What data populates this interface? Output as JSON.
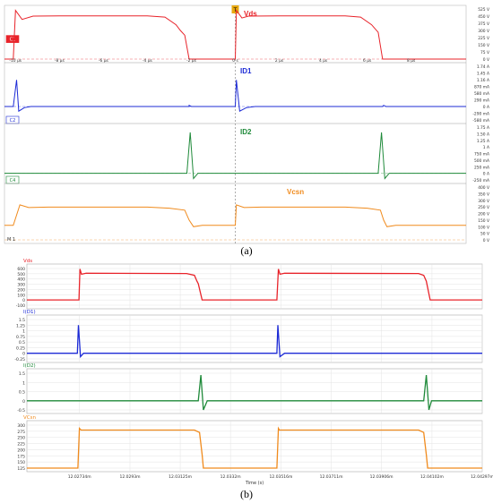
{
  "captions": {
    "a": "(a)",
    "b": "(b)"
  },
  "scope": {
    "x_ticks": [
      "-10 μs",
      "-8 μs",
      "-6 μs",
      "-4 μs",
      "-2 μs",
      "0 s",
      "2 μs",
      "4 μs",
      "6 μs",
      "8 μs"
    ],
    "trigger_marker": "T",
    "marker_label": "M 1",
    "channels": [
      {
        "key": "vds",
        "badge": "C1",
        "title": "Vds",
        "color": "#e8232a",
        "scale": [
          "525 V",
          "450 V",
          "375 V",
          "300 V",
          "225 V",
          "150 V",
          "75 V",
          "0 V"
        ]
      },
      {
        "key": "id1",
        "badge": "C2",
        "title": "ID1",
        "color": "#1d2bd6",
        "scale": [
          "1.74 A",
          "1.45 A",
          "1.16 A",
          "870 mA",
          "580 mA",
          "290 mA",
          "0 A",
          "-290 mA",
          "-580 mA"
        ]
      },
      {
        "key": "id2",
        "badge": "C4",
        "title": "ID2",
        "color": "#1f8a3a",
        "scale": [
          "1.75 A",
          "1.50 A",
          "1.25 A",
          "1 A",
          "750 mA",
          "500 mA",
          "250 mA",
          "0 A",
          "-250 mA"
        ]
      },
      {
        "key": "vcsn",
        "badge": "",
        "title": "Vcsn",
        "color": "#f08a1c",
        "scale": [
          "400 V",
          "350 V",
          "300 V",
          "250 V",
          "200 V",
          "150 V",
          "100 V",
          "50 V",
          "0 V"
        ]
      }
    ]
  },
  "sim": {
    "x_ticks": [
      "12.02734m",
      "12.0293m",
      "12.03125m",
      "12.0332m",
      "12.03516m",
      "12.03711m",
      "12.03906m",
      "12.04102m",
      "12.04297m"
    ],
    "x_label": "Time (s)",
    "panels": [
      {
        "key": "vds",
        "title": "Vds",
        "color": "#e8232a",
        "yticks": [
          "600",
          "500",
          "400",
          "300",
          "200",
          "100",
          "0",
          "-100"
        ]
      },
      {
        "key": "id1",
        "title": "I(D1)",
        "color": "#1d2bd6",
        "yticks": [
          "1.5",
          "1.25",
          "1",
          "0.75",
          "0.5",
          "0.25",
          "0",
          "-0.25"
        ]
      },
      {
        "key": "id2",
        "title": "I(D2)",
        "color": "#1f8a3a",
        "yticks": [
          "1.5",
          "1",
          "0.5",
          "0",
          "-0.5"
        ]
      },
      {
        "key": "vcsn",
        "title": "VCsn",
        "color": "#f08a1c",
        "yticks": [
          "300",
          "275",
          "250",
          "225",
          "200",
          "175",
          "150",
          "125"
        ]
      }
    ]
  },
  "chart_data": [
    {
      "type": "line",
      "title": "",
      "xlabel": "",
      "x_unit": "μs",
      "xlim": [
        -10.5,
        10.5
      ],
      "series": [
        {
          "name": "Vds",
          "values_unit": "V",
          "ylim": [
            0,
            525
          ],
          "points": [
            [
              -10.5,
              0
            ],
            [
              -10.1,
              0
            ],
            [
              -10.0,
              510
            ],
            [
              -9.7,
              415
            ],
            [
              -9.2,
              450
            ],
            [
              -8,
              452
            ],
            [
              -4,
              452
            ],
            [
              -3.2,
              440
            ],
            [
              -2.7,
              360
            ],
            [
              -2.5,
              300
            ],
            [
              -2.3,
              250
            ],
            [
              -2.1,
              0
            ],
            [
              0,
              0
            ],
            [
              0.05,
              510
            ],
            [
              0.3,
              430
            ],
            [
              0.6,
              450
            ],
            [
              2,
              452
            ],
            [
              5,
              452
            ],
            [
              5.7,
              440
            ],
            [
              6.2,
              360
            ],
            [
              6.5,
              280
            ],
            [
              6.7,
              0
            ],
            [
              10.5,
              0
            ]
          ]
        },
        {
          "name": "ID1",
          "values_unit": "A",
          "ylim": [
            -0.58,
            1.74
          ],
          "points": [
            [
              -10.5,
              0
            ],
            [
              -10.1,
              0
            ],
            [
              -9.95,
              1.15
            ],
            [
              -9.85,
              -0.2
            ],
            [
              -9.6,
              -0.05
            ],
            [
              -9.3,
              0
            ],
            [
              -2.1,
              0
            ],
            [
              -2.1,
              0.05
            ],
            [
              -2.0,
              0
            ],
            [
              0,
              0
            ],
            [
              0.05,
              1.15
            ],
            [
              0.2,
              -0.2
            ],
            [
              0.5,
              -0.05
            ],
            [
              0.9,
              0
            ],
            [
              6.7,
              0
            ],
            [
              6.75,
              0.05
            ],
            [
              6.85,
              0
            ],
            [
              10.5,
              0
            ]
          ]
        },
        {
          "name": "ID2",
          "values_unit": "A",
          "ylim": [
            -0.25,
            1.75
          ],
          "points": [
            [
              -10.5,
              0
            ],
            [
              -2.2,
              0
            ],
            [
              -2.05,
              1.55
            ],
            [
              -1.9,
              -0.2
            ],
            [
              -1.7,
              0
            ],
            [
              6.5,
              0
            ],
            [
              6.65,
              1.55
            ],
            [
              6.8,
              -0.2
            ],
            [
              7.0,
              0
            ],
            [
              10.5,
              0
            ]
          ]
        },
        {
          "name": "Vcsn",
          "values_unit": "V",
          "ylim": [
            0,
            400
          ],
          "points": [
            [
              -10.5,
              110
            ],
            [
              -10.1,
              110
            ],
            [
              -9.8,
              265
            ],
            [
              -9.4,
              245
            ],
            [
              -8.5,
              248
            ],
            [
              -4,
              248
            ],
            [
              -3,
              240
            ],
            [
              -2.3,
              225
            ],
            [
              -2.1,
              150
            ],
            [
              -1.9,
              100
            ],
            [
              -1.5,
              110
            ],
            [
              0,
              110
            ],
            [
              0.05,
              265
            ],
            [
              0.4,
              245
            ],
            [
              1.2,
              248
            ],
            [
              5,
              248
            ],
            [
              6,
              240
            ],
            [
              6.6,
              225
            ],
            [
              6.75,
              150
            ],
            [
              6.9,
              100
            ],
            [
              7.3,
              110
            ],
            [
              10.5,
              110
            ]
          ]
        }
      ]
    },
    {
      "type": "line",
      "title": "",
      "xlabel": "Time (s)",
      "x_unit": "ms",
      "xlim": [
        12.0253,
        12.04297
      ],
      "series": [
        {
          "name": "Vds",
          "values_unit": "V",
          "ylim": [
            -100,
            650
          ],
          "points": [
            [
              12.0253,
              0
            ],
            [
              12.02732,
              0
            ],
            [
              12.02736,
              590
            ],
            [
              12.02742,
              490
            ],
            [
              12.0276,
              510
            ],
            [
              12.0315,
              505
            ],
            [
              12.0318,
              470
            ],
            [
              12.0319,
              360
            ],
            [
              12.03195,
              310
            ],
            [
              12.0321,
              0
            ],
            [
              12.035,
              0
            ],
            [
              12.03506,
              590
            ],
            [
              12.03512,
              490
            ],
            [
              12.0353,
              510
            ],
            [
              12.0405,
              505
            ],
            [
              12.0407,
              470
            ],
            [
              12.0408,
              360
            ],
            [
              12.03409,
              0
            ],
            [
              12.04095,
              0
            ],
            [
              12.04297,
              0
            ]
          ]
        },
        {
          "name": "I(D1)",
          "values_unit": "A",
          "ylim": [
            -0.3,
            1.6
          ],
          "points": [
            [
              12.0253,
              0
            ],
            [
              12.02726,
              0
            ],
            [
              12.0273,
              1.25
            ],
            [
              12.02738,
              -0.15
            ],
            [
              12.0275,
              0
            ],
            [
              12.035,
              0
            ],
            [
              12.03504,
              1.25
            ],
            [
              12.03512,
              -0.15
            ],
            [
              12.0353,
              0
            ],
            [
              12.04297,
              0
            ]
          ]
        },
        {
          "name": "I(D2)",
          "values_unit": "A",
          "ylim": [
            -0.8,
            1.8
          ],
          "points": [
            [
              12.0253,
              0
            ],
            [
              12.03195,
              0
            ],
            [
              12.03205,
              1.4
            ],
            [
              12.03215,
              -0.5
            ],
            [
              12.0323,
              0
            ],
            [
              12.0407,
              0
            ],
            [
              12.0408,
              1.4
            ],
            [
              12.0409,
              -0.5
            ],
            [
              12.041,
              0
            ],
            [
              12.04297,
              0
            ]
          ]
        },
        {
          "name": "VCsn",
          "values_unit": "V",
          "ylim": [
            110,
            310
          ],
          "points": [
            [
              12.0253,
              120
            ],
            [
              12.02728,
              120
            ],
            [
              12.02734,
              287
            ],
            [
              12.0274,
              280
            ],
            [
              12.0277,
              280
            ],
            [
              12.0318,
              280
            ],
            [
              12.032,
              270
            ],
            [
              12.0321,
              180
            ],
            [
              12.03215,
              105
            ],
            [
              12.0323,
              112
            ],
            [
              12.0326,
              120
            ],
            [
              12.035,
              120
            ],
            [
              12.03506,
              287
            ],
            [
              12.0351,
              280
            ],
            [
              12.0405,
              280
            ],
            [
              12.0407,
              270
            ],
            [
              12.0408,
              180
            ],
            [
              12.04085,
              105
            ],
            [
              12.041,
              112
            ],
            [
              12.0413,
              120
            ],
            [
              12.04297,
              120
            ]
          ]
        }
      ]
    }
  ]
}
